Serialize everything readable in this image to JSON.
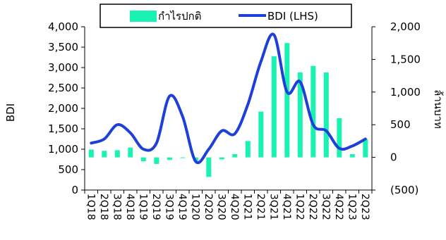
{
  "chart_data": {
    "type": "bar+line",
    "categories": [
      "1Q18",
      "2Q18",
      "3Q18",
      "4Q18",
      "1Q19",
      "2Q19",
      "3Q19",
      "4Q19",
      "1Q20",
      "2Q20",
      "3Q20",
      "4Q20",
      "1Q21",
      "2Q21",
      "3Q21",
      "4Q21",
      "1Q22",
      "2Q22",
      "3Q22",
      "4Q22",
      "1Q23",
      "2Q23"
    ],
    "series": [
      {
        "name": "กำไรปกติ",
        "type": "bar",
        "axis": "right",
        "color": "#19F2B3",
        "values": [
          120,
          100,
          110,
          150,
          -60,
          -100,
          -40,
          -10,
          -60,
          -300,
          -30,
          50,
          250,
          700,
          1550,
          1750,
          1300,
          1400,
          1300,
          600,
          50,
          280
        ]
      },
      {
        "name": "BDI (LHS)",
        "type": "line",
        "axis": "left",
        "color": "#1E3FD8",
        "values": [
          1150,
          1250,
          1600,
          1400,
          1000,
          1150,
          2300,
          1800,
          700,
          1000,
          1450,
          1380,
          2100,
          3150,
          3800,
          2400,
          2650,
          1600,
          1450,
          1020,
          1080,
          1250
        ]
      }
    ],
    "y_left": {
      "label": "BDI",
      "min": 0,
      "max": 4000,
      "ticks": [
        "0",
        "500",
        "1,000",
        "1,500",
        "2,000",
        "2,500",
        "3,000",
        "3,500",
        "4,000"
      ]
    },
    "y_right": {
      "label": "ล้านบาท",
      "min": -500,
      "max": 2000,
      "ticks": [
        "(500)",
        "0",
        "500",
        "1,000",
        "1,500",
        "2,000"
      ]
    },
    "legend": {
      "placement": "top-center"
    },
    "grid": false
  }
}
